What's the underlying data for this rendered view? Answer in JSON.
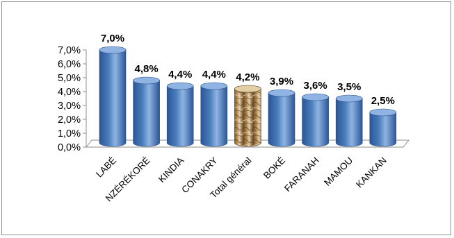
{
  "chart_data": {
    "type": "bar",
    "style": "3d-cylinder",
    "title": "",
    "xlabel": "",
    "ylabel": "",
    "categories": [
      "LABÉ",
      "NZÉRÉKORÉ",
      "KINDIA",
      "CONAKRY",
      "Total général",
      "BOKÉ",
      "FARANAH",
      "MAMOU",
      "KANKAN"
    ],
    "values": [
      7.0,
      4.8,
      4.4,
      4.4,
      4.2,
      3.9,
      3.6,
      3.5,
      2.5
    ],
    "data_labels": [
      "7,0%",
      "4,8%",
      "4,4%",
      "4,4%",
      "4,2%",
      "3,9%",
      "3,6%",
      "3,5%",
      "2,5%"
    ],
    "highlight_category": "Total général",
    "ylim": [
      0,
      7
    ],
    "y_ticks": [
      0,
      1,
      2,
      3,
      4,
      5,
      6,
      7
    ],
    "y_tick_labels": [
      "0,0%",
      "1,0%",
      "2,0%",
      "3,0%",
      "4,0%",
      "5,0%",
      "6,0%",
      "7,0%"
    ],
    "grid": false,
    "legend": "none",
    "colors": {
      "bar": "#4a7ebb",
      "bar_dark": "#2b5597",
      "bar_light": "#8fb4e3",
      "highlight": "#b48a55",
      "highlight_dark": "#6b4a25",
      "highlight_light": "#e3cfa6",
      "axis": "#8c8c8c"
    }
  }
}
